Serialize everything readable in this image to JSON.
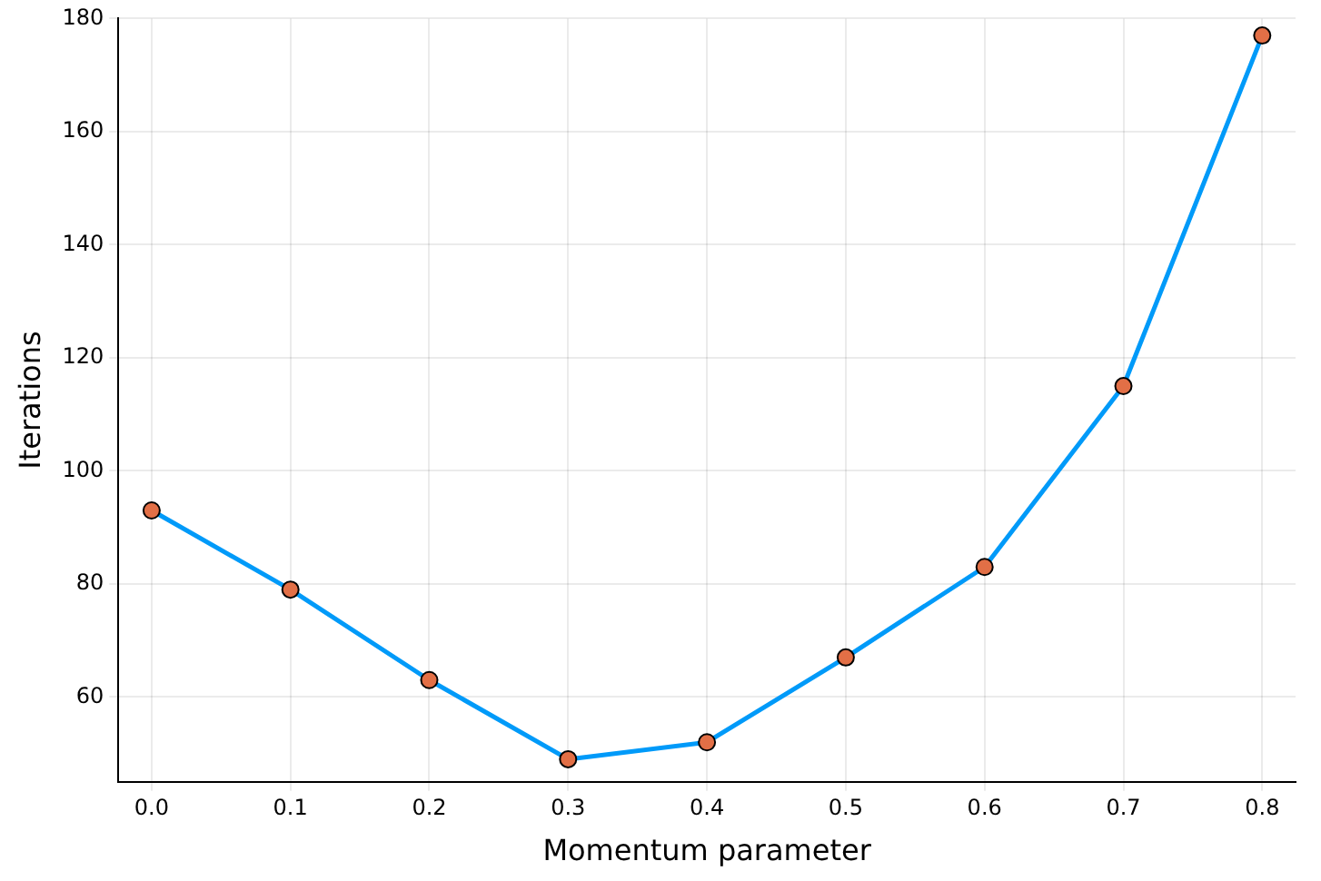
{
  "chart_data": {
    "type": "line",
    "xlabel": "Momentum parameter",
    "ylabel": "Iterations",
    "x": [
      0,
      0.1,
      0.2,
      0.3,
      0.4,
      0.5,
      0.6,
      0.7,
      0.8
    ],
    "series": [
      {
        "type": "line",
        "color": "#009af9",
        "marker": "none",
        "values": [
          93,
          79,
          63,
          49,
          52,
          67,
          83,
          115,
          177
        ]
      },
      {
        "type": "scatter",
        "color": "#e26f46",
        "marker": "circle",
        "values": [
          93,
          79,
          63,
          49,
          52,
          67,
          83,
          115,
          177
        ]
      }
    ],
    "xlim": [
      -0.024,
      0.824
    ],
    "ylim": [
      45,
      180
    ],
    "xticks": [
      {
        "value": 0,
        "label": "0.0"
      },
      0.1,
      0.2,
      0.3,
      0.4,
      0.5,
      0.6,
      0.7,
      0.8
    ],
    "yticks": [
      60,
      80,
      100,
      120,
      140,
      160,
      180
    ],
    "grid": true,
    "legend": false
  }
}
